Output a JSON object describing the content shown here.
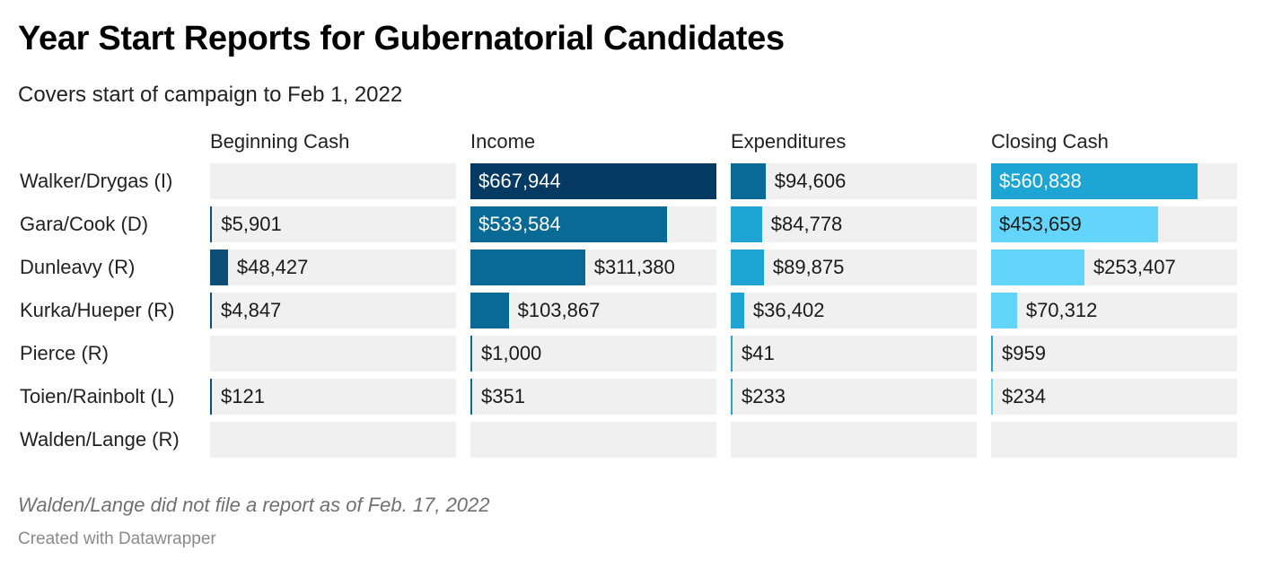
{
  "header": {
    "title": "Year Start Reports for Gubernatorial Candidates",
    "subtitle": "Covers start of campaign to Feb 1, 2022"
  },
  "footer": {
    "note": "Walden/Lange did not file a report as of Feb. 17, 2022",
    "credit": "Created with Datawrapper"
  },
  "chart_data": {
    "type": "bar",
    "title": "Year Start Reports for Gubernatorial Candidates",
    "subtitle": "Covers start of campaign to Feb 1, 2022",
    "categories": [
      "Walker/Drygas (I)",
      "Gara/Cook (D)",
      "Dunleavy (R)",
      "Kurka/Hueper (R)",
      "Pierce (R)",
      "Toien/Rainbolt (L)",
      "Walden/Lange (R)"
    ],
    "series": [
      {
        "name": "Beginning Cash",
        "values": [
          null,
          5901,
          48427,
          4847,
          null,
          121,
          null
        ],
        "labels": [
          "",
          "$5,901",
          "$48,427",
          "$4,847",
          "",
          "$121",
          ""
        ],
        "colors": [
          "#0e4d75",
          "#0e4d75",
          "#0e4d75",
          "#0e4d75",
          "#0e4d75",
          "#0e4d75",
          "#0e4d75"
        ]
      },
      {
        "name": "Income",
        "values": [
          667944,
          533584,
          311380,
          103867,
          1000,
          351,
          null
        ],
        "labels": [
          "$667,944",
          "$533,584",
          "$311,380",
          "$103,867",
          "$1,000",
          "$351",
          ""
        ],
        "colors": [
          "#063a62",
          "#0a6a96",
          "#0a6a96",
          "#0a6a96",
          "#0a6a96",
          "#0a6a96",
          "#0a6a96"
        ]
      },
      {
        "name": "Expenditures",
        "values": [
          94606,
          84778,
          89875,
          36402,
          41,
          233,
          null
        ],
        "labels": [
          "$94,606",
          "$84,778",
          "$89,875",
          "$36,402",
          "$41",
          "$233",
          ""
        ],
        "colors": [
          "#0a6a96",
          "#1ea5d3",
          "#1ea5d3",
          "#1ea5d3",
          "#1ea5d3",
          "#1ea5d3",
          "#1ea5d3"
        ]
      },
      {
        "name": "Closing Cash",
        "values": [
          560838,
          453659,
          253407,
          70312,
          959,
          234,
          null
        ],
        "labels": [
          "$560,838",
          "$453,659",
          "$253,407",
          "$70,312",
          "$959",
          "$234",
          ""
        ],
        "colors": [
          "#1ea5d3",
          "#63d5fb",
          "#63d5fb",
          "#63d5fb",
          "#1ea5d3",
          "#63d5fb",
          "#63d5fb"
        ]
      }
    ],
    "xlim": [
      0,
      667944
    ],
    "grid": false,
    "legend": "none"
  }
}
